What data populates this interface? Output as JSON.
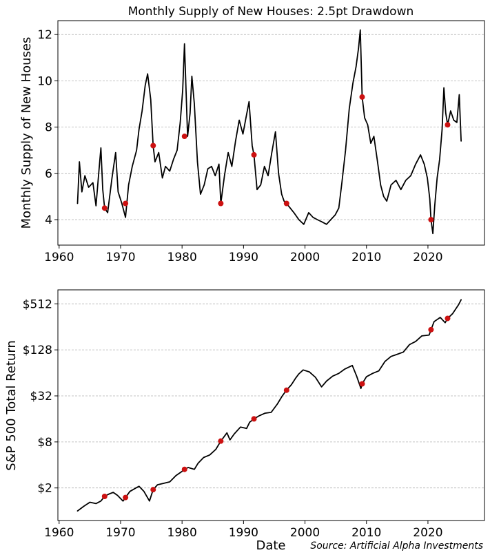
{
  "figure": {
    "source_note": "Source: Artificial Alpha Investments"
  },
  "chart_data": [
    {
      "type": "line",
      "title": "Monthly Supply of New Houses: 2.5pt Drawdown",
      "xlabel": "",
      "ylabel": "Monthly Supply of New Houses",
      "xlim": [
        1959.8,
        2029.2
      ],
      "ylim": [
        2.9,
        12.6
      ],
      "xticks": [
        1960,
        1970,
        1980,
        1990,
        2000,
        2010,
        2020
      ],
      "xtick_labels": [
        "1960",
        "1970",
        "1980",
        "1990",
        "2000",
        "2010",
        "2020"
      ],
      "yticks": [
        4,
        6,
        8,
        10,
        12
      ],
      "ytick_labels": [
        "4",
        "6",
        "8",
        "10",
        "12"
      ],
      "grid": "y-dashed",
      "line_color": "#000000",
      "marker_color": "#cc1111",
      "series": [
        {
          "name": "Monthly Supply of New Houses",
          "x": [
            1963.0,
            1963.3,
            1963.7,
            1964.2,
            1964.8,
            1965.5,
            1966.0,
            1966.5,
            1966.8,
            1967.1,
            1967.4,
            1967.9,
            1968.6,
            1969.2,
            1969.6,
            1970.2,
            1970.8,
            1971.3,
            1971.9,
            1972.6,
            1973.0,
            1973.5,
            1974.0,
            1974.4,
            1974.9,
            1975.3,
            1975.6,
            1976.2,
            1976.8,
            1977.3,
            1978.0,
            1978.6,
            1979.2,
            1979.7,
            1980.1,
            1980.4,
            1980.9,
            1981.3,
            1981.6,
            1982.0,
            1982.5,
            1983.0,
            1983.6,
            1984.2,
            1984.8,
            1985.4,
            1986.0,
            1986.3,
            1986.9,
            1987.5,
            1988.1,
            1988.7,
            1989.3,
            1989.9,
            1990.4,
            1990.9,
            1991.4,
            1991.7,
            1992.2,
            1992.8,
            1993.4,
            1994.0,
            1994.6,
            1995.2,
            1995.7,
            1996.2,
            1996.6,
            1997.0,
            1997.6,
            1998.2,
            1999.0,
            1999.8,
            2000.6,
            2001.3,
            2002.0,
            2002.8,
            2003.5,
            2004.2,
            2004.9,
            2005.5,
            2006.0,
            2006.6,
            2007.2,
            2007.8,
            2008.3,
            2008.7,
            2009.0,
            2009.3,
            2009.7,
            2010.2,
            2010.7,
            2011.2,
            2011.8,
            2012.3,
            2012.8,
            2013.3,
            2014.0,
            2014.8,
            2015.6,
            2016.4,
            2017.2,
            2018.0,
            2018.8,
            2019.4,
            2019.9,
            2020.3,
            2020.5,
            2020.8,
            2021.1,
            2021.5,
            2021.9,
            2022.3,
            2022.6,
            2022.9,
            2023.2,
            2023.7,
            2024.2,
            2024.7,
            2025.1,
            2025.4
          ],
          "y": [
            4.7,
            6.5,
            5.2,
            5.9,
            5.4,
            5.6,
            4.6,
            6.2,
            7.1,
            5.3,
            4.5,
            4.3,
            5.8,
            6.9,
            5.2,
            4.7,
            4.1,
            5.5,
            6.3,
            7.0,
            7.9,
            8.7,
            9.8,
            10.3,
            9.2,
            7.2,
            6.5,
            6.9,
            5.8,
            6.3,
            6.1,
            6.6,
            7.0,
            8.2,
            9.6,
            11.6,
            7.6,
            8.6,
            10.2,
            9.0,
            6.5,
            5.1,
            5.5,
            6.2,
            6.3,
            5.9,
            6.4,
            4.7,
            5.9,
            6.9,
            6.3,
            7.4,
            8.3,
            7.7,
            8.4,
            9.1,
            7.2,
            6.8,
            5.3,
            5.5,
            6.3,
            5.9,
            6.9,
            7.8,
            6.0,
            5.1,
            4.8,
            4.7,
            4.5,
            4.3,
            4.0,
            3.8,
            4.3,
            4.1,
            4.0,
            3.9,
            3.8,
            4.0,
            4.2,
            4.5,
            5.6,
            7.0,
            8.8,
            9.9,
            10.6,
            11.4,
            12.2,
            9.3,
            8.4,
            8.1,
            7.3,
            7.6,
            6.5,
            5.5,
            5.0,
            4.8,
            5.5,
            5.7,
            5.3,
            5.7,
            5.9,
            6.4,
            6.8,
            6.4,
            5.8,
            4.9,
            4.0,
            3.4,
            4.6,
            5.8,
            6.6,
            7.9,
            9.7,
            8.6,
            8.1,
            8.7,
            8.3,
            8.2,
            9.4,
            7.4
          ]
        }
      ],
      "markers": {
        "x": [
          1967.4,
          1970.8,
          1975.3,
          1980.4,
          1986.3,
          1991.7,
          1997.0,
          2009.3,
          2020.5,
          2023.2
        ],
        "y": [
          4.5,
          4.7,
          7.2,
          7.6,
          4.7,
          6.8,
          4.7,
          9.3,
          4.0,
          8.1
        ]
      }
    },
    {
      "type": "line",
      "title": "",
      "xlabel": "Date",
      "ylabel": "S&P 500 Total Return",
      "yscale": "log2",
      "xlim": [
        1959.8,
        2029.2
      ],
      "ylim": [
        0.75,
        780
      ],
      "xticks": [
        1960,
        1970,
        1980,
        1990,
        2000,
        2010,
        2020
      ],
      "xtick_labels": [
        "1960",
        "1970",
        "1980",
        "1990",
        "2000",
        "2010",
        "2020"
      ],
      "yticks": [
        2,
        8,
        32,
        128,
        512
      ],
      "ytick_labels": [
        "$2",
        "$8",
        "$32",
        "$128",
        "$512"
      ],
      "grid": "y-dashed",
      "line_color": "#000000",
      "marker_color": "#cc1111",
      "series": [
        {
          "name": "S&P 500 Total Return",
          "x": [
            1963.0,
            1964.0,
            1965.0,
            1966.0,
            1966.8,
            1967.4,
            1968.0,
            1968.8,
            1969.5,
            1970.4,
            1970.8,
            1971.5,
            1972.5,
            1973.0,
            1973.8,
            1974.7,
            1975.3,
            1976.0,
            1977.0,
            1978.0,
            1979.0,
            1980.0,
            1980.4,
            1981.0,
            1982.0,
            1982.6,
            1983.5,
            1984.5,
            1985.5,
            1986.3,
            1987.3,
            1987.8,
            1988.5,
            1989.5,
            1990.5,
            1991.0,
            1991.7,
            1992.5,
            1993.5,
            1994.5,
            1995.5,
            1996.3,
            1997.0,
            1997.8,
            1998.5,
            1999.0,
            1999.7,
            2000.7,
            2001.7,
            2002.7,
            2003.5,
            2004.5,
            2005.5,
            2006.5,
            2007.7,
            2008.4,
            2009.1,
            2009.3,
            2010.0,
            2011.0,
            2012.0,
            2013.0,
            2014.0,
            2015.0,
            2016.0,
            2017.0,
            2018.0,
            2019.0,
            2020.2,
            2020.5,
            2021.0,
            2022.0,
            2022.8,
            2023.2,
            2024.0,
            2025.0,
            2025.4
          ],
          "y": [
            1.0,
            1.15,
            1.3,
            1.25,
            1.35,
            1.55,
            1.65,
            1.75,
            1.6,
            1.35,
            1.5,
            1.8,
            2.0,
            2.1,
            1.8,
            1.35,
            1.9,
            2.2,
            2.3,
            2.4,
            2.9,
            3.3,
            3.5,
            3.7,
            3.5,
            4.2,
            5.0,
            5.4,
            6.4,
            8.2,
            10.5,
            8.5,
            10.2,
            12.5,
            12.0,
            14.5,
            16.0,
            17.5,
            19.0,
            19.5,
            25.0,
            32.0,
            38.0,
            45.0,
            55.0,
            62.0,
            70.0,
            66.0,
            56.0,
            42.0,
            50.0,
            58.0,
            63.0,
            72.0,
            80.0,
            58.0,
            40.0,
            46.0,
            57.0,
            63.0,
            68.0,
            90.0,
            105.0,
            112.0,
            120.0,
            150.0,
            165.0,
            195.0,
            200.0,
            235.0,
            300.0,
            340.0,
            290.0,
            330.0,
            380.0,
            500.0,
            580.0
          ]
        }
      ],
      "markers": {
        "x": [
          1967.4,
          1970.8,
          1975.3,
          1980.4,
          1986.3,
          1991.7,
          1997.0,
          2009.3,
          2020.5,
          2023.2
        ],
        "y": [
          1.55,
          1.5,
          1.9,
          3.5,
          8.2,
          16.0,
          38.0,
          46.0,
          235.0,
          330.0
        ]
      }
    }
  ]
}
